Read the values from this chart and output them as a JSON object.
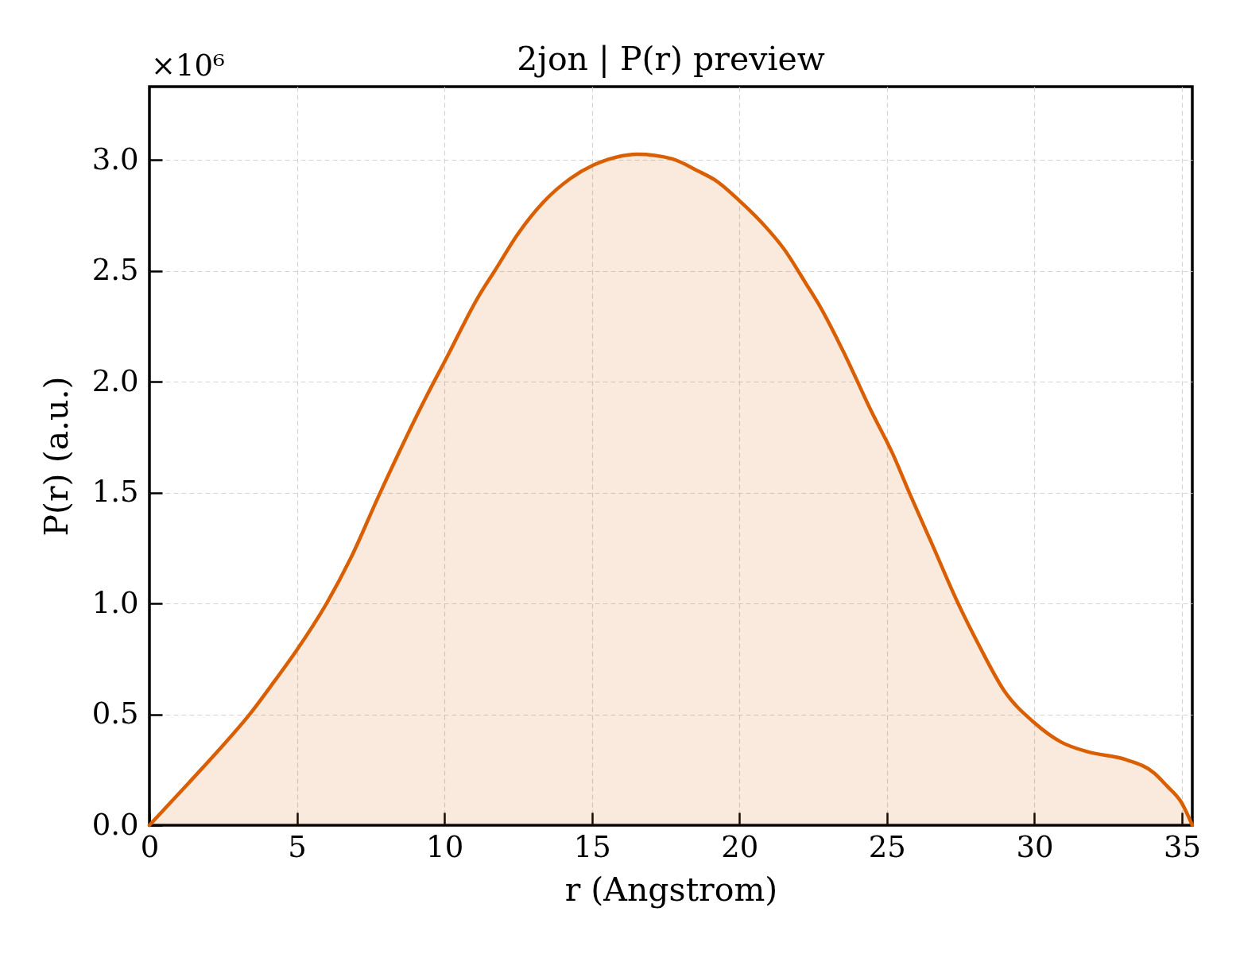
{
  "chart_data": {
    "type": "area",
    "title": "2jon | P(r) preview",
    "xlabel": "r (Angstrom)",
    "ylabel": "P(r) (a.u.)",
    "annotations": [
      "×10⁶"
    ],
    "x": [
      0,
      1.34,
      2.38,
      3.41,
      4.24,
      4.97,
      6.0,
      6.83,
      7.78,
      9.39,
      10.06,
      11.16,
      11.72,
      12.49,
      13.38,
      14.27,
      15.04,
      15.82,
      16.54,
      17.7,
      18.59,
      19.18,
      19.98,
      20.9,
      21.51,
      22.25,
      22.74,
      23.59,
      24.45,
      25.19,
      25.77,
      26.51,
      27.38,
      28.12,
      28.98,
      29.97,
      30.9,
      31.83,
      33.07,
      34.06,
      34.49,
      34.98,
      35.35
    ],
    "series": [
      {
        "color": "#d95f02",
        "values": [
          0,
          0.192,
          0.343,
          0.502,
          0.65,
          0.785,
          0.999,
          1.206,
          1.487,
          1.934,
          2.104,
          2.385,
          2.503,
          2.666,
          2.813,
          2.916,
          2.976,
          3.012,
          3.025,
          3.005,
          2.95,
          2.908,
          2.818,
          2.696,
          2.598,
          2.443,
          2.337,
          2.117,
          1.872,
          1.676,
          1.495,
          1.273,
          1.009,
          0.811,
          0.605,
          0.465,
          0.375,
          0.33,
          0.297,
          0.235,
          0.177,
          0.103,
          0
        ]
      }
    ],
    "xlim": [
      0,
      35.35
    ],
    "ylim": [
      0,
      3.33
    ],
    "xticks": [
      0,
      5,
      10,
      15,
      20,
      25,
      30,
      35
    ],
    "yticks": [
      {
        "value": 0,
        "label": "0.0"
      },
      0.5,
      {
        "value": 1,
        "label": "1.0"
      },
      1.5,
      {
        "value": 2,
        "label": "2.0"
      },
      2.5,
      {
        "value": 3,
        "label": "3.0"
      }
    ],
    "grid": true
  }
}
